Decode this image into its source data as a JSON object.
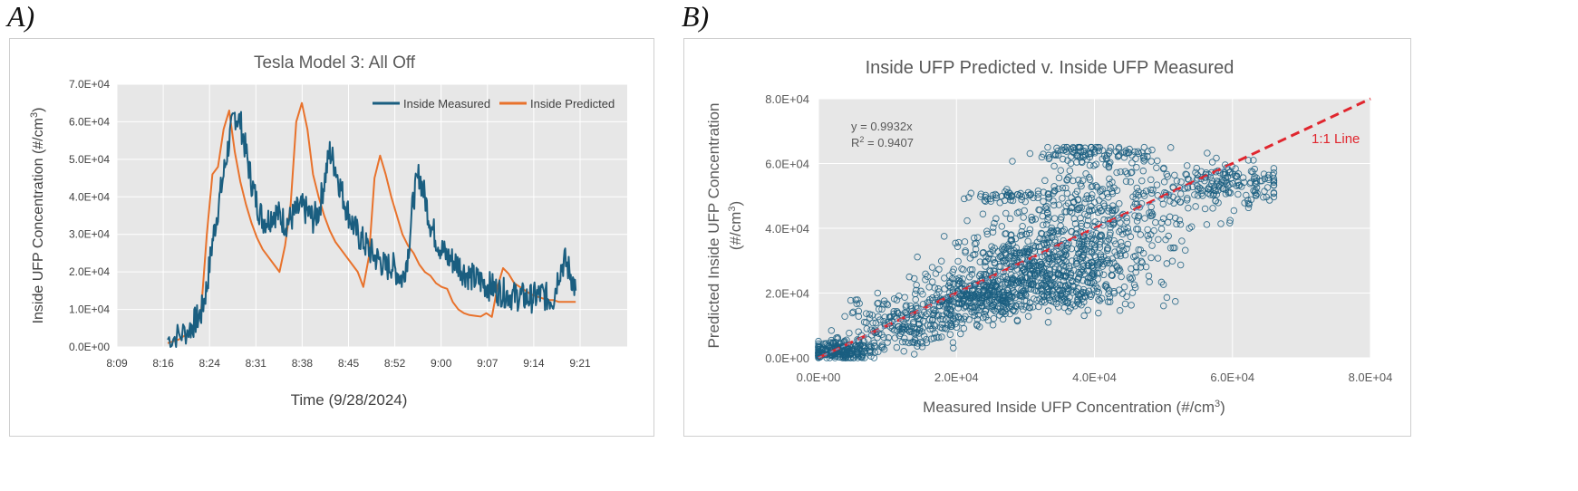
{
  "panels": {
    "a_label": "A)",
    "b_label": "B)"
  },
  "chart_data": [
    {
      "type": "line",
      "title": "Tesla Model 3: All Off",
      "xlabel": "Time (9/28/2024)",
      "ylabel_main": "Inside UFP Concentration (#/cm",
      "ylabel_sup": "3",
      "ylabel_end": ")",
      "x_ticks": [
        "8:09",
        "8:16",
        "8:24",
        "8:31",
        "8:38",
        "8:45",
        "8:52",
        "9:00",
        "9:07",
        "9:14",
        "9:21"
      ],
      "y_ticks": [
        "0.0E+00",
        "1.0E+04",
        "2.0E+04",
        "3.0E+04",
        "4.0E+04",
        "5.0E+04",
        "6.0E+04",
        "7.0E+04"
      ],
      "ylim": [
        0,
        70000
      ],
      "x_minutes_range": [
        0,
        84
      ],
      "grid": true,
      "legend_position": "top-right",
      "colors": {
        "measured": "#1a5e80",
        "predicted": "#e8722c",
        "plot_bg": "#e7e7e7",
        "grid": "#ffffff"
      },
      "series": [
        {
          "name": "Inside Measured",
          "x": [
            8,
            10,
            12,
            13,
            14,
            15,
            16,
            17,
            18,
            19,
            20,
            21,
            22,
            23,
            24,
            25,
            26,
            27,
            28,
            29,
            30,
            31,
            32,
            33,
            34,
            35,
            36,
            37,
            38,
            39,
            40,
            41,
            42,
            43,
            44,
            45,
            46,
            47,
            48,
            49,
            50,
            51,
            52,
            53,
            54,
            55,
            56,
            57,
            58,
            59,
            60,
            61,
            62,
            63,
            64,
            65,
            66,
            67,
            68,
            69,
            70,
            71,
            72,
            73,
            74,
            75,
            76,
            77,
            78,
            79,
            80,
            81
          ],
          "y": [
            2000,
            3000,
            5000,
            7000,
            9000,
            16000,
            28000,
            37000,
            46000,
            55000,
            62000,
            60000,
            52000,
            44000,
            38000,
            34000,
            34000,
            36000,
            35000,
            33000,
            34000,
            36000,
            37000,
            36000,
            34000,
            36000,
            44000,
            52000,
            48000,
            42000,
            37000,
            33000,
            30000,
            28000,
            26000,
            24000,
            23000,
            21000,
            22000,
            20000,
            18000,
            25000,
            40000,
            46000,
            40000,
            33000,
            29000,
            26000,
            24000,
            23000,
            22000,
            20000,
            19000,
            18000,
            17500,
            16500,
            16000,
            15000,
            14500,
            14000,
            13500,
            13500,
            13000,
            13000,
            13500,
            14000,
            13000,
            13000,
            20000,
            23000,
            20000,
            15000
          ],
          "noise_amplitude": 4000
        },
        {
          "name": "Inside Predicted",
          "x": [
            8,
            10,
            12,
            13,
            14,
            15,
            16,
            17,
            18,
            19,
            20,
            21,
            22,
            23,
            24,
            25,
            26,
            27,
            28,
            29,
            30,
            31,
            32,
            33,
            34,
            35,
            36,
            37,
            38,
            39,
            40,
            41,
            42,
            43,
            44,
            45,
            46,
            47,
            48,
            49,
            50,
            51,
            52,
            53,
            54,
            55,
            56,
            57,
            58,
            59,
            60,
            61,
            62,
            63,
            64,
            65,
            66,
            67,
            68,
            69,
            70,
            71,
            72,
            73,
            74,
            75,
            76,
            77,
            78,
            79,
            80,
            81
          ],
          "y": [
            1000,
            2000,
            4000,
            6000,
            10000,
            30000,
            46000,
            48000,
            58000,
            63000,
            52000,
            44000,
            38000,
            33000,
            29000,
            26000,
            24000,
            22000,
            20000,
            27000,
            38000,
            60000,
            65000,
            58000,
            46000,
            40000,
            35000,
            31000,
            28000,
            26000,
            24000,
            22000,
            20000,
            16000,
            24000,
            45000,
            51000,
            46000,
            40000,
            35000,
            30000,
            27000,
            25000,
            22000,
            20000,
            19000,
            17000,
            16000,
            15500,
            12000,
            10000,
            9000,
            8500,
            8300,
            8100,
            9000,
            8000,
            16000,
            21000,
            19500,
            17000,
            16000,
            15000,
            14000,
            13500,
            13000,
            12500,
            12500,
            12000,
            12000,
            12000,
            12000
          ],
          "noise_amplitude": 0
        }
      ]
    },
    {
      "type": "scatter",
      "title": "Inside UFP Predicted v. Inside UFP Measured",
      "xlabel_main": "Measured Inside UFP Concentration (#/cm",
      "xlabel_sup": "3",
      "xlabel_end": ")",
      "ylabel_line1": "Predicted Inside UFP  Concentration",
      "ylabel_line2_main": "(#/cm",
      "ylabel_line2_sup": "3",
      "ylabel_line2_end": ")",
      "x_ticks": [
        "0.0E+00",
        "2.0E+04",
        "4.0E+04",
        "6.0E+04",
        "8.0E+04"
      ],
      "y_ticks": [
        "0.0E+00",
        "2.0E+04",
        "4.0E+04",
        "6.0E+04",
        "8.0E+04"
      ],
      "xlim": [
        0,
        80000
      ],
      "ylim": [
        0,
        80000
      ],
      "grid": true,
      "equation": "y = 0.9932x",
      "r2_main": "R",
      "r2_sup": "2",
      "r2_end": " = 0.9407",
      "line_label": "1:1 Line",
      "trend_slope": 0.9932,
      "colors": {
        "points": "#1a5e80",
        "one_to_one": "#e0262e",
        "trend": "#6b9bc3",
        "plot_bg": "#e7e7e7",
        "grid": "#ffffff"
      },
      "point_clusters": [
        {
          "cx": 3000,
          "cy": 2000,
          "sx": 2500,
          "sy": 1500,
          "n": 220
        },
        {
          "cx": 12000,
          "cy": 10000,
          "sx": 4000,
          "sy": 4000,
          "n": 200
        },
        {
          "cx": 22000,
          "cy": 18000,
          "sx": 4000,
          "sy": 4000,
          "n": 320
        },
        {
          "cx": 30000,
          "cy": 28000,
          "sx": 6000,
          "sy": 6000,
          "n": 360
        },
        {
          "cx": 38000,
          "cy": 34000,
          "sx": 6000,
          "sy": 8000,
          "n": 320
        },
        {
          "cx": 45000,
          "cy": 50000,
          "sx": 7000,
          "sy": 7000,
          "n": 220
        },
        {
          "cx": 40000,
          "cy": 63000,
          "sx": 4000,
          "sy": 1800,
          "n": 100
        },
        {
          "cx": 60000,
          "cy": 54000,
          "sx": 4000,
          "sy": 3000,
          "n": 140
        },
        {
          "cx": 28000,
          "cy": 50000,
          "sx": 3000,
          "sy": 1200,
          "n": 50
        },
        {
          "cx": 36000,
          "cy": 20000,
          "sx": 6000,
          "sy": 3000,
          "n": 120
        }
      ]
    }
  ]
}
